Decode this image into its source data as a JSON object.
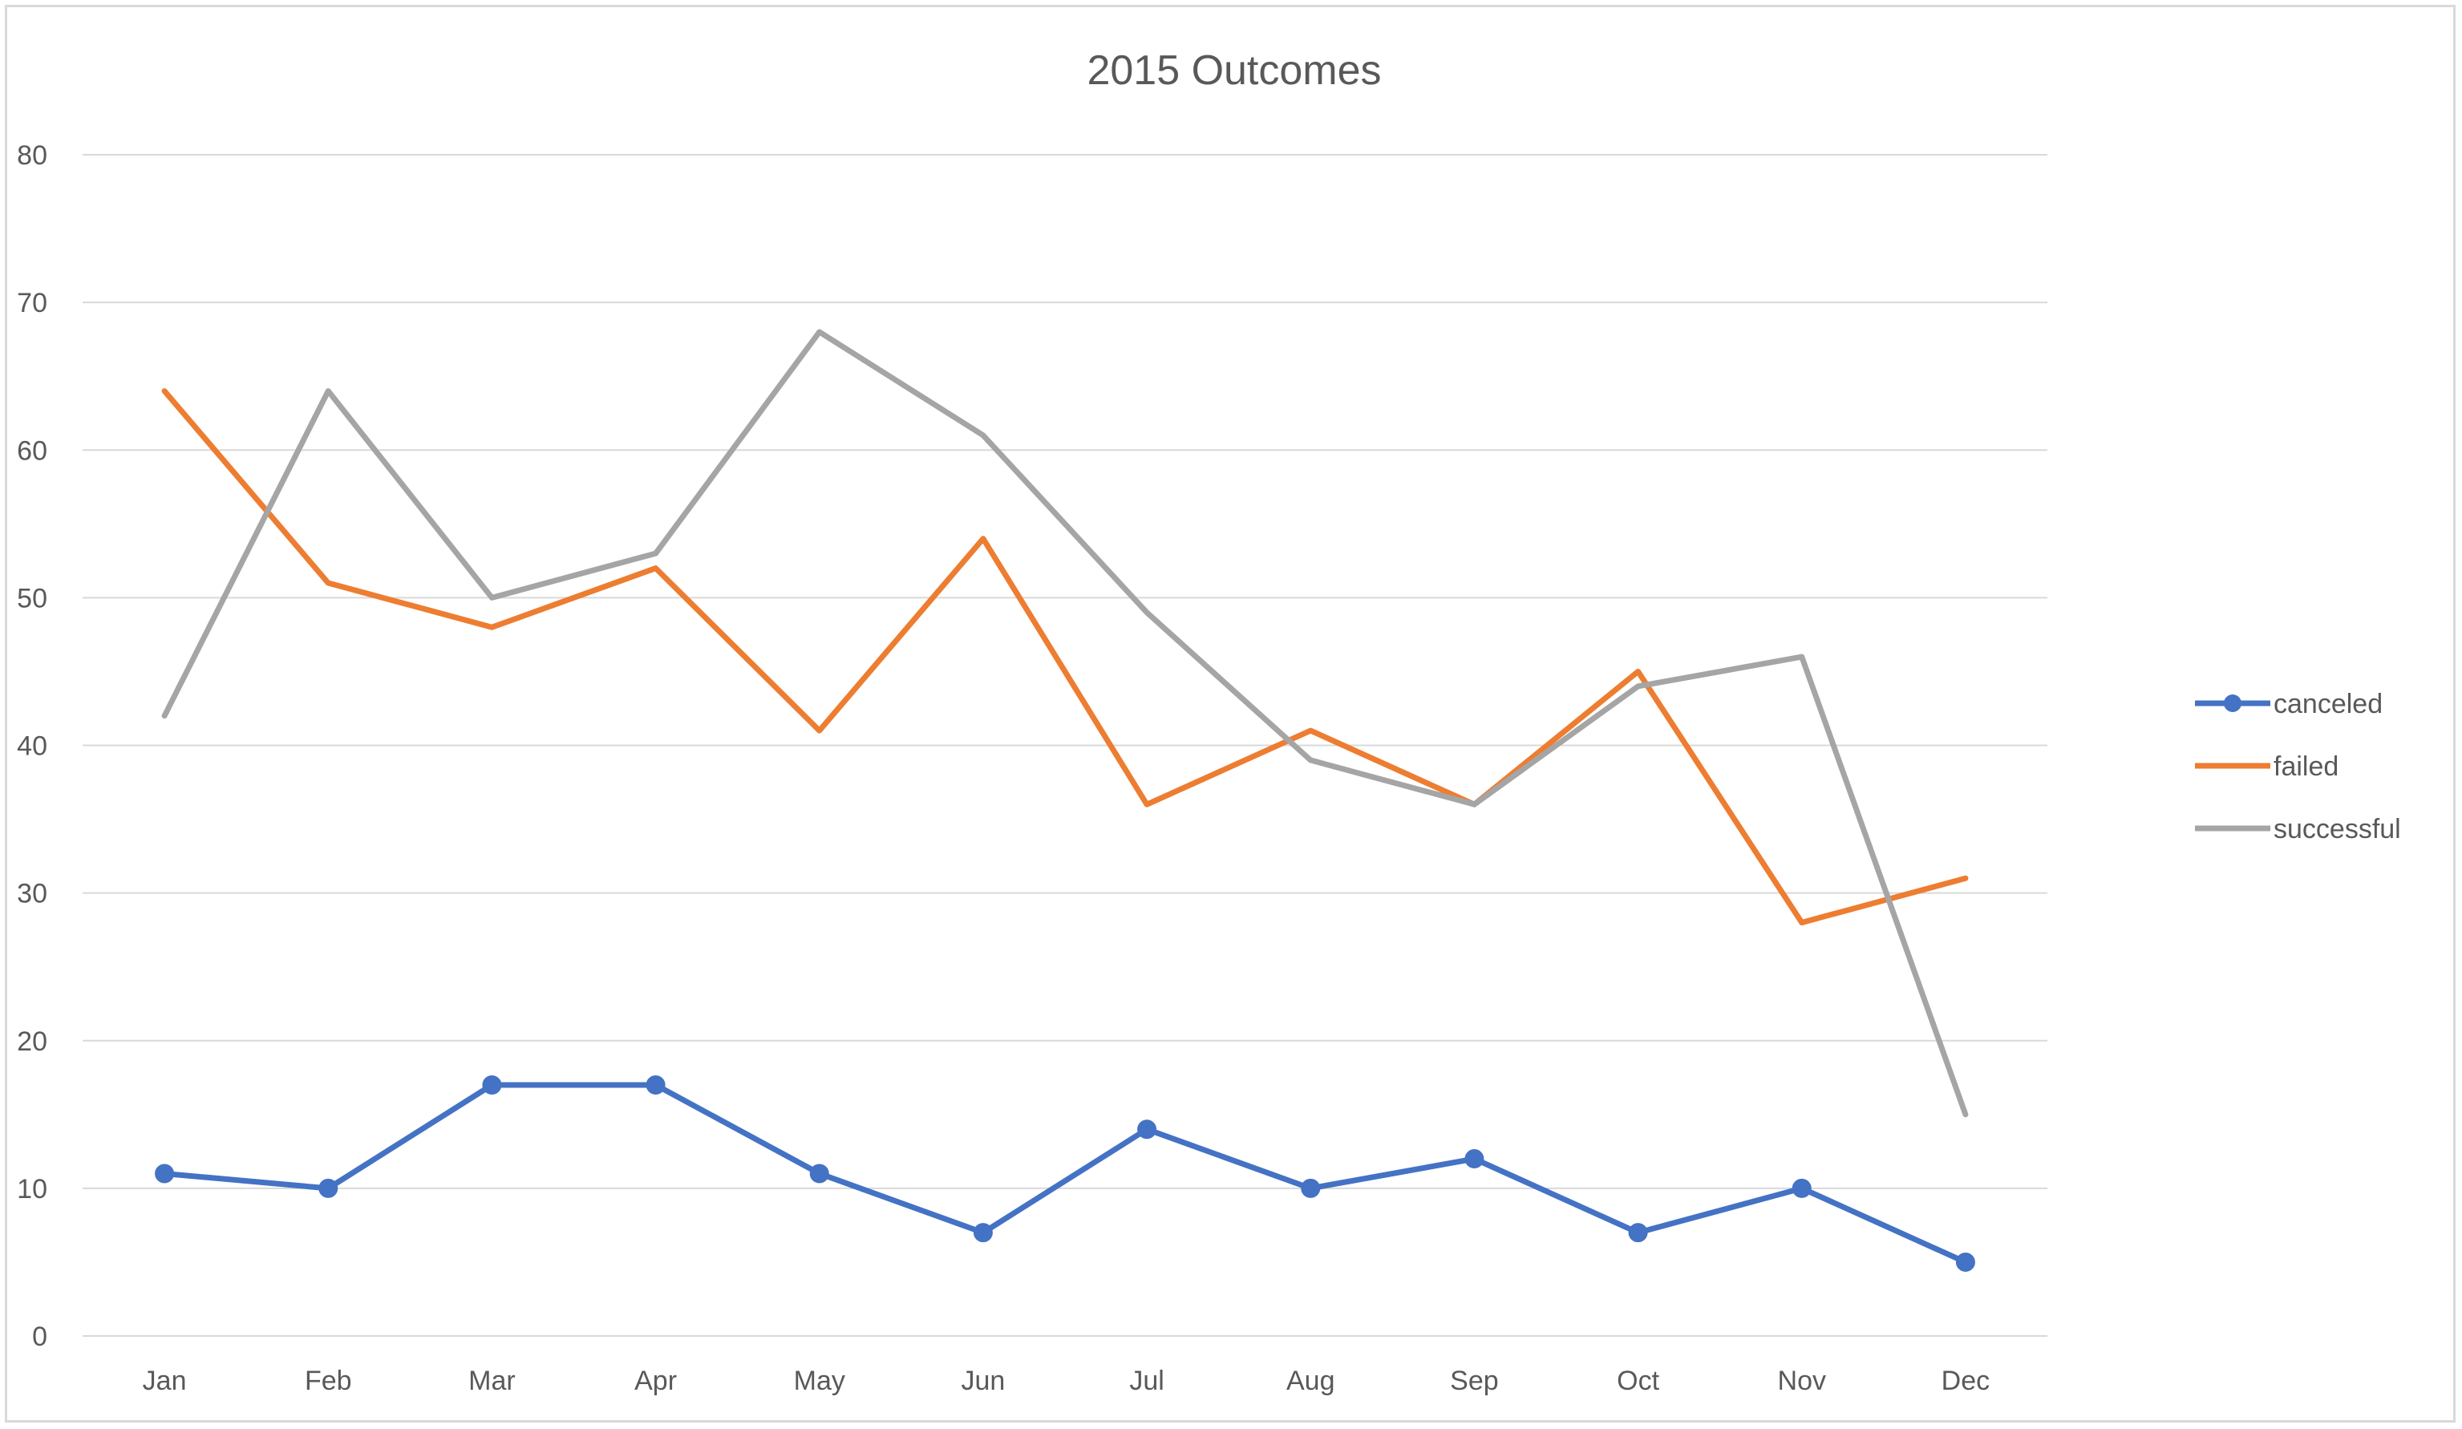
{
  "chart_data": {
    "type": "line",
    "title": "2015 Outcomes",
    "categories": [
      "Jan",
      "Feb",
      "Mar",
      "Apr",
      "May",
      "Jun",
      "Jul",
      "Aug",
      "Sep",
      "Oct",
      "Nov",
      "Dec"
    ],
    "series": [
      {
        "name": "canceled",
        "color": "#4472c4",
        "markers": true,
        "values": [
          11,
          10,
          17,
          17,
          11,
          7,
          14,
          10,
          12,
          7,
          10,
          5
        ]
      },
      {
        "name": "failed",
        "color": "#ed7d31",
        "markers": false,
        "values": [
          64,
          51,
          48,
          52,
          41,
          54,
          36,
          41,
          36,
          45,
          28,
          31
        ]
      },
      {
        "name": "successful",
        "color": "#a5a5a5",
        "markers": false,
        "values": [
          42,
          64,
          50,
          53,
          68,
          61,
          49,
          39,
          36,
          44,
          46,
          15
        ]
      }
    ],
    "ylim": [
      0,
      80
    ],
    "yticks": [
      0,
      10,
      20,
      30,
      40,
      50,
      60,
      70,
      80
    ],
    "grid": true,
    "legend_position": "right",
    "xlabel": "",
    "ylabel": ""
  }
}
